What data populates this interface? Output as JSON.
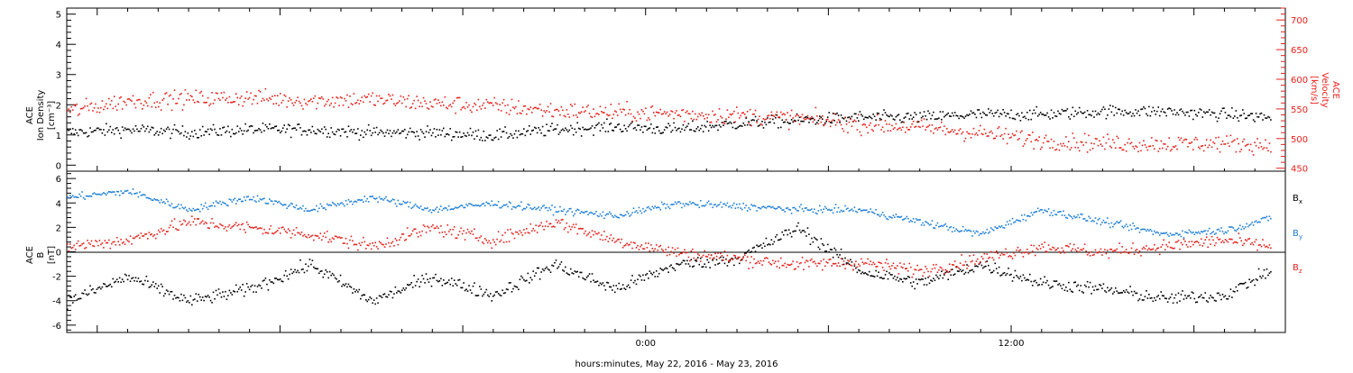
{
  "chart_data": [
    {
      "type": "scatter",
      "panel": "top",
      "left_ylabel": [
        "ACE",
        "Ion Density",
        "[cm⁻³]"
      ],
      "right_ylabel": [
        "ACE",
        "Velocity",
        "[km/s]"
      ],
      "left_ylim": [
        -0.2,
        5.2
      ],
      "right_ylim": [
        445,
        720
      ],
      "left_yticks": [
        0,
        1,
        2,
        3,
        4,
        5
      ],
      "right_yticks": [
        450,
        500,
        550,
        600,
        650,
        700
      ],
      "x_range_hours": [
        -19,
        21
      ],
      "data_end_hour": 20.5,
      "series": [
        {
          "axis": "left",
          "color": "#000000",
          "points": [
            [
              -19,
              1.1
            ],
            [
              -17,
              1.2
            ],
            [
              -15,
              1.1
            ],
            [
              -13,
              1.2
            ],
            [
              -11,
              1.2
            ],
            [
              -9,
              1.1
            ],
            [
              -7,
              1.1
            ],
            [
              -5,
              1.0
            ],
            [
              -3,
              1.2
            ],
            [
              -1,
              1.3
            ],
            [
              1,
              1.2
            ],
            [
              3,
              1.4
            ],
            [
              5,
              1.5
            ],
            [
              7,
              1.6
            ],
            [
              9,
              1.6
            ],
            [
              11,
              1.7
            ],
            [
              13,
              1.7
            ],
            [
              15,
              1.8
            ],
            [
              17,
              1.8
            ],
            [
              19,
              1.7
            ],
            [
              20.5,
              1.6
            ]
          ]
        },
        {
          "axis": "right",
          "color": "#e8201a",
          "points": [
            [
              -19,
              547
            ],
            [
              -17,
              565
            ],
            [
              -15,
              568
            ],
            [
              -13,
              570
            ],
            [
              -11,
              565
            ],
            [
              -9,
              567
            ],
            [
              -7,
              560
            ],
            [
              -5,
              556
            ],
            [
              -3,
              548
            ],
            [
              -1,
              545
            ],
            [
              1,
              543
            ],
            [
              3,
              540
            ],
            [
              5,
              535
            ],
            [
              7,
              525
            ],
            [
              9,
              520
            ],
            [
              11,
              510
            ],
            [
              13,
              498
            ],
            [
              15,
              493
            ],
            [
              17,
              492
            ],
            [
              19,
              493
            ],
            [
              20.5,
              490
            ]
          ]
        }
      ]
    },
    {
      "type": "scatter",
      "panel": "bottom",
      "ylabel": [
        "ACE",
        "B",
        "[nT]"
      ],
      "ylim": [
        -6.6,
        6.6
      ],
      "yticks": [
        -6,
        -4,
        -2,
        0,
        2,
        4,
        6
      ],
      "x_range_hours": [
        -19,
        21
      ],
      "data_end_hour": 20.5,
      "xticks": [
        {
          "hour": 0,
          "label": "0:00"
        },
        {
          "hour": 12,
          "label": "12:00"
        }
      ],
      "xlabel": "hours:minutes, May 22, 2016 - May 23, 2016",
      "legend": [
        {
          "label": "B",
          "sub": "x",
          "color": "#000000"
        },
        {
          "label": "B",
          "sub": "y",
          "color": "#1e7fd6"
        },
        {
          "label": "B",
          "sub": "z",
          "color": "#e8201a"
        }
      ],
      "series": [
        {
          "name": "Bx",
          "color": "#000000",
          "points": [
            [
              -19,
              -4.0
            ],
            [
              -17,
              -2.0
            ],
            [
              -15,
              -4.0
            ],
            [
              -13,
              -3.0
            ],
            [
              -11,
              -1.0
            ],
            [
              -9,
              -4.0
            ],
            [
              -7,
              -2.0
            ],
            [
              -5,
              -3.5
            ],
            [
              -3,
              -1.0
            ],
            [
              -1,
              -3.0
            ],
            [
              1,
              -1.0
            ],
            [
              3,
              -0.5
            ],
            [
              5,
              2.0
            ],
            [
              7,
              -1.5
            ],
            [
              9,
              -2.5
            ],
            [
              11,
              -1.0
            ],
            [
              13,
              -2.5
            ],
            [
              15,
              -3.0
            ],
            [
              17,
              -3.8
            ],
            [
              19,
              -3.5
            ],
            [
              20.5,
              -1.5
            ]
          ]
        },
        {
          "name": "By",
          "color": "#1e7fd6",
          "points": [
            [
              -19,
              4.5
            ],
            [
              -17,
              5.0
            ],
            [
              -15,
              3.5
            ],
            [
              -13,
              4.5
            ],
            [
              -11,
              3.5
            ],
            [
              -9,
              4.5
            ],
            [
              -7,
              3.5
            ],
            [
              -5,
              4.0
            ],
            [
              -3,
              3.5
            ],
            [
              -1,
              3.0
            ],
            [
              1,
              4.0
            ],
            [
              3,
              3.8
            ],
            [
              5,
              3.5
            ],
            [
              7,
              3.5
            ],
            [
              9,
              2.5
            ],
            [
              11,
              1.5
            ],
            [
              13,
              3.5
            ],
            [
              15,
              2.5
            ],
            [
              17,
              1.5
            ],
            [
              19,
              1.8
            ],
            [
              20.5,
              2.8
            ]
          ]
        },
        {
          "name": "Bz",
          "color": "#e8201a",
          "points": [
            [
              -19,
              0.5
            ],
            [
              -17,
              1.0
            ],
            [
              -15,
              2.5
            ],
            [
              -13,
              2.0
            ],
            [
              -11,
              1.5
            ],
            [
              -9,
              0.5
            ],
            [
              -7,
              2.0
            ],
            [
              -5,
              1.0
            ],
            [
              -3,
              2.5
            ],
            [
              -1,
              1.0
            ],
            [
              1,
              0.0
            ],
            [
              3,
              -0.5
            ],
            [
              5,
              -1.0
            ],
            [
              7,
              -0.8
            ],
            [
              9,
              -1.5
            ],
            [
              11,
              -0.5
            ],
            [
              13,
              0.5
            ],
            [
              15,
              0.0
            ],
            [
              17,
              0.5
            ],
            [
              19,
              1.0
            ],
            [
              20.5,
              0.5
            ]
          ]
        }
      ]
    }
  ]
}
